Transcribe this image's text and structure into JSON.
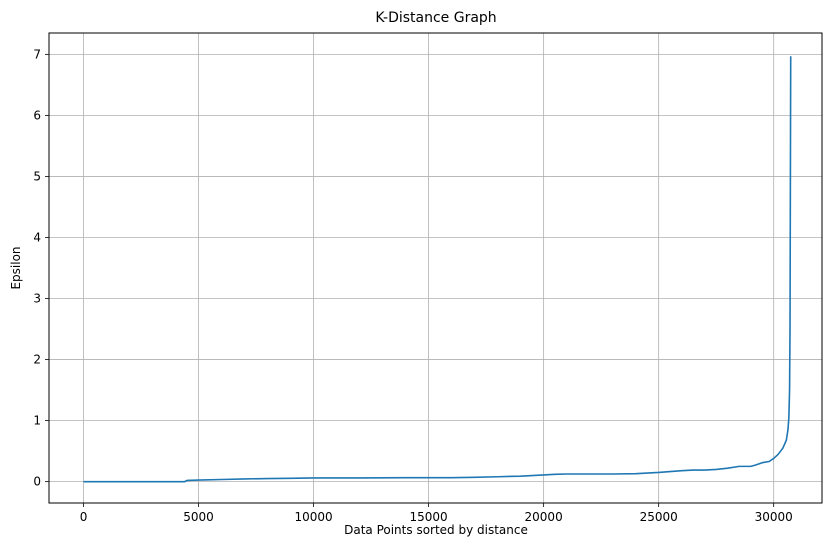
{
  "chart_data": {
    "type": "line",
    "title": "K-Distance Graph",
    "xlabel": "Data Points sorted by distance",
    "ylabel": "Epsilon",
    "xlim": [
      -1500,
      32100
    ],
    "ylim": [
      -0.35,
      7.35
    ],
    "xticks": [
      0,
      5000,
      10000,
      15000,
      20000,
      25000,
      30000
    ],
    "yticks": [
      0,
      1,
      2,
      3,
      4,
      5,
      6,
      7
    ],
    "grid": true,
    "series": [
      {
        "color": "#1f77b4",
        "x": [
          0,
          4400,
          4500,
          5000,
          6000,
          7000,
          8000,
          9000,
          10000,
          12000,
          14000,
          16000,
          17000,
          18000,
          19000,
          19500,
          20000,
          20500,
          21000,
          22000,
          23000,
          24000,
          25000,
          25500,
          26000,
          26500,
          27000,
          27500,
          28000,
          28500,
          29000,
          29200,
          29500,
          29800,
          30000,
          30200,
          30400,
          30550,
          30620,
          30660,
          30690,
          30710,
          30720,
          30730,
          30740
        ],
        "y": [
          0.0,
          0.0,
          0.02,
          0.025,
          0.035,
          0.045,
          0.05,
          0.055,
          0.06,
          0.06,
          0.065,
          0.065,
          0.07,
          0.08,
          0.09,
          0.1,
          0.11,
          0.12,
          0.125,
          0.125,
          0.125,
          0.13,
          0.15,
          0.165,
          0.18,
          0.19,
          0.19,
          0.2,
          0.22,
          0.25,
          0.25,
          0.27,
          0.31,
          0.33,
          0.38,
          0.45,
          0.55,
          0.68,
          0.85,
          1.05,
          1.5,
          2.5,
          4.0,
          5.5,
          6.97
        ]
      }
    ]
  }
}
